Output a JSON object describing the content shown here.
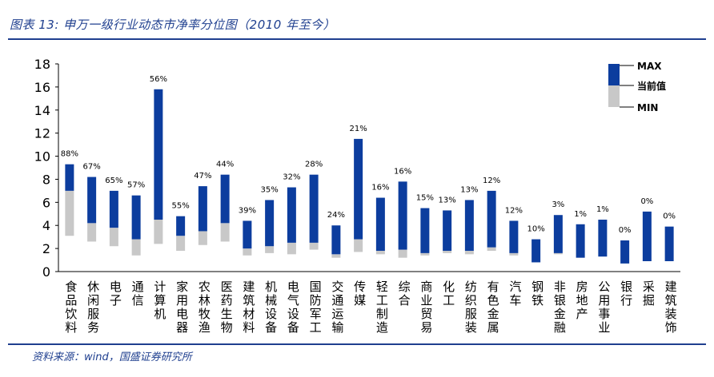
{
  "title": "图表 13: 申万一级行业动态市净率分位图（2010 年至今）",
  "source": "资料来源：wind，国盛证券研究所",
  "colors": {
    "blue": "#0c3d9e",
    "gray": "#c8c8c8",
    "axis": "#000000"
  },
  "chart_data": {
    "type": "bar",
    "ylim": [
      0,
      18
    ],
    "yticks": [
      "0",
      "2",
      "4",
      "6",
      "8",
      "10",
      "12",
      "14",
      "16",
      "18"
    ],
    "legend": {
      "max": "MAX",
      "current": "当前值",
      "min": "MIN",
      "position": "top-right"
    },
    "categories": [
      "食品饮料",
      "休闲服务",
      "电子",
      "通信",
      "计算机",
      "家用电器",
      "农林牧渔",
      "医药生物",
      "建筑材料",
      "机械设备",
      "电气设备",
      "国防军工",
      "交通运输",
      "传媒",
      "轻工制造",
      "综合",
      "商业贸易",
      "化工",
      "纺织服装",
      "有色金属",
      "汽车",
      "钢铁",
      "非银金融",
      "房地产",
      "公用事业",
      "银行",
      "采掘",
      "建筑装饰"
    ],
    "max": [
      9.3,
      8.2,
      7.0,
      6.6,
      15.8,
      4.8,
      7.4,
      8.4,
      4.4,
      6.2,
      7.3,
      8.4,
      4.0,
      11.5,
      6.4,
      7.8,
      5.5,
      5.3,
      6.2,
      7.0,
      4.4,
      2.8,
      4.9,
      4.1,
      4.5,
      2.7,
      5.2,
      3.9
    ],
    "current": [
      7.0,
      4.2,
      3.8,
      2.8,
      4.5,
      3.1,
      3.5,
      4.2,
      2.0,
      2.2,
      2.5,
      2.5,
      1.5,
      2.8,
      1.8,
      1.9,
      1.6,
      1.8,
      1.8,
      2.1,
      1.6,
      0.8,
      1.6,
      1.2,
      1.3,
      0.7,
      0.9,
      0.9
    ],
    "min": [
      3.1,
      2.6,
      2.2,
      1.4,
      2.4,
      1.8,
      2.3,
      2.6,
      1.4,
      1.6,
      1.5,
      1.9,
      1.2,
      1.7,
      1.5,
      1.2,
      1.4,
      1.6,
      1.5,
      1.8,
      1.4,
      0.8,
      1.5,
      1.2,
      1.3,
      0.7,
      0.9,
      0.9
    ],
    "labels": [
      "88%",
      "67%",
      "65%",
      "57%",
      "56%",
      "55%",
      "47%",
      "44%",
      "39%",
      "35%",
      "32%",
      "28%",
      "24%",
      "21%",
      "16%",
      "16%",
      "15%",
      "13%",
      "13%",
      "12%",
      "12%",
      "10%",
      "3%",
      "1%",
      "1%",
      "0%",
      "0%",
      "0%"
    ]
  }
}
